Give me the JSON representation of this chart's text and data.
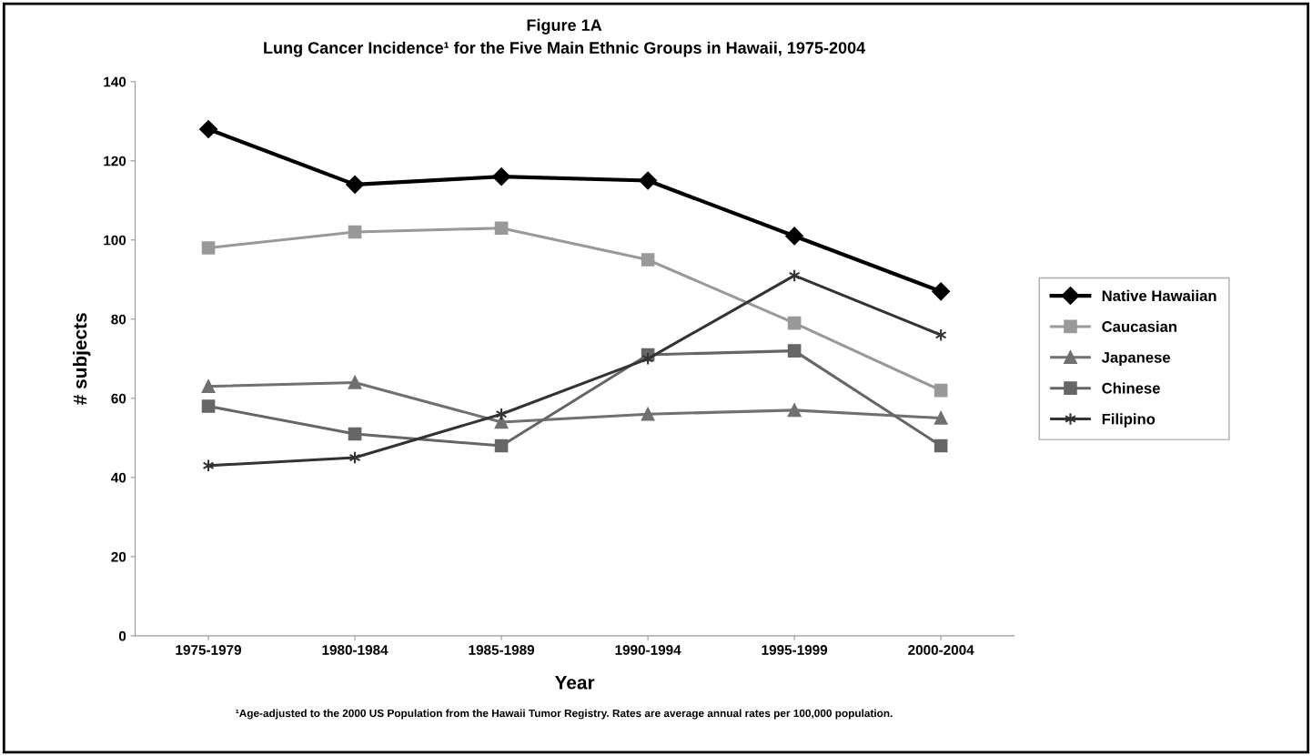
{
  "chart_data": {
    "type": "line",
    "title": "Figure 1A",
    "subtitle": "Lung Cancer Incidence¹ for the Five Main Ethnic Groups in Hawaii, 1975-2004",
    "xlabel": "Year",
    "ylabel": "# subjects",
    "categories": [
      "1975-1979",
      "1980-1984",
      "1985-1989",
      "1990-1994",
      "1995-1999",
      "2000-2004"
    ],
    "series": [
      {
        "name": "Native Hawaiian",
        "color": "#000000",
        "marker": "diamond",
        "values": [
          128,
          114,
          116,
          115,
          101,
          87
        ]
      },
      {
        "name": "Caucasian",
        "color": "#999999",
        "marker": "square",
        "values": [
          98,
          102,
          103,
          95,
          79,
          62
        ]
      },
      {
        "name": "Japanese",
        "color": "#707070",
        "marker": "triangle",
        "values": [
          63,
          64,
          54,
          56,
          57,
          55
        ]
      },
      {
        "name": "Chinese",
        "color": "#666666",
        "marker": "square",
        "values": [
          58,
          51,
          48,
          71,
          72,
          48
        ]
      },
      {
        "name": "Filipino",
        "color": "#333333",
        "marker": "cross",
        "values": [
          43,
          45,
          56,
          70,
          91,
          76
        ]
      }
    ],
    "ylim": [
      0,
      140
    ],
    "yticks": [
      0,
      20,
      40,
      60,
      80,
      100,
      120,
      140
    ],
    "grid": false,
    "legend": "right",
    "line_style": "solid",
    "annotations": [
      "¹Age-adjusted to the 2000 US Population from the Hawaii Tumor Registry. Rates are average annual rates per 100,000 population."
    ]
  }
}
